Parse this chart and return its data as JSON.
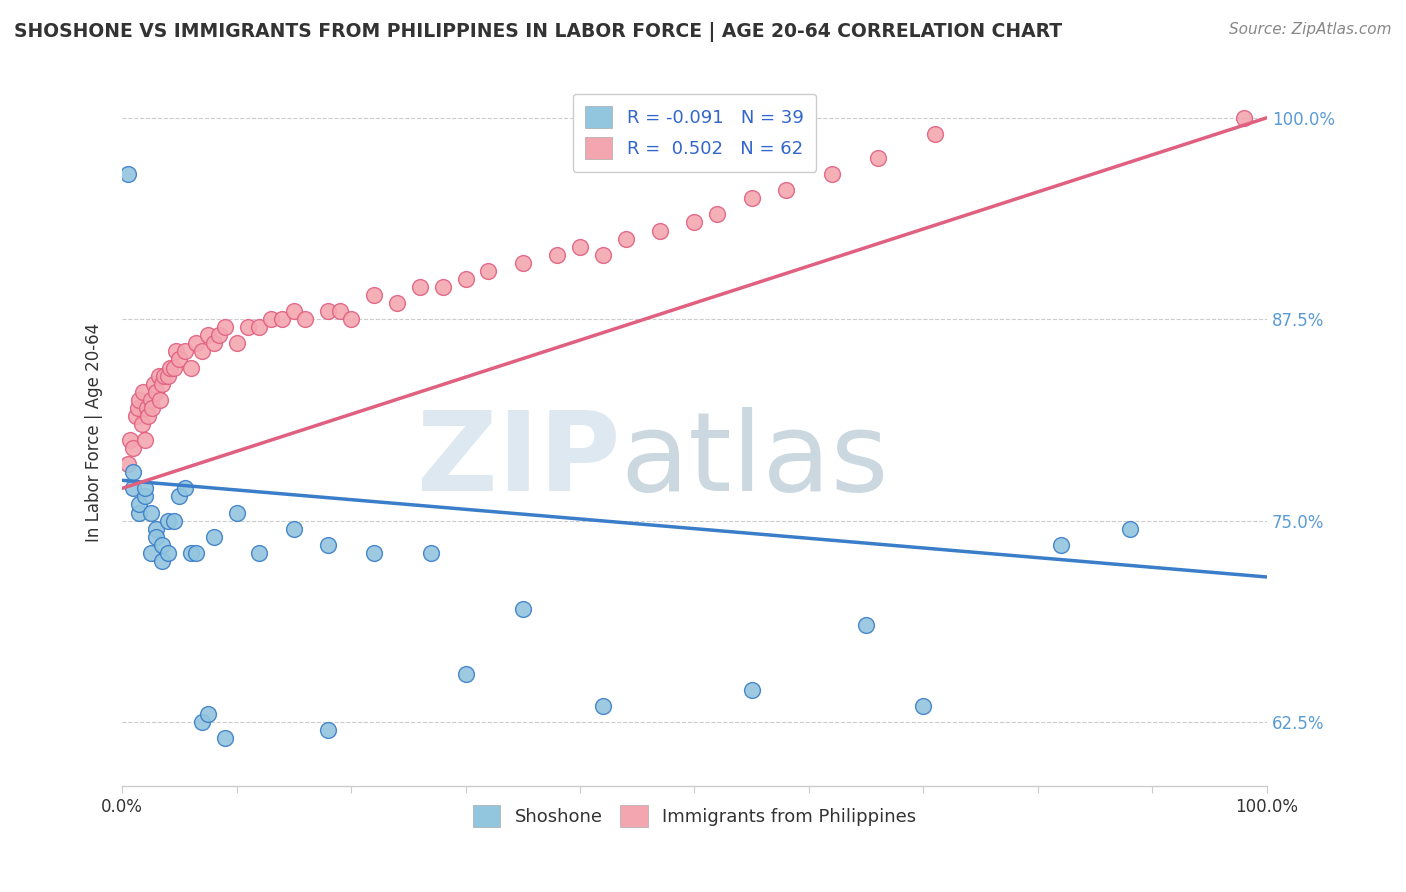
{
  "title": "SHOSHONE VS IMMIGRANTS FROM PHILIPPINES IN LABOR FORCE | AGE 20-64 CORRELATION CHART",
  "source": "Source: ZipAtlas.com",
  "ylabel": "In Labor Force | Age 20-64",
  "xlim": [
    0.0,
    1.0
  ],
  "ylim": [
    0.585,
    1.025
  ],
  "yticks": [
    0.625,
    0.75,
    0.875,
    1.0
  ],
  "ytick_labels": [
    "62.5%",
    "75.0%",
    "87.5%",
    "100.0%"
  ],
  "xtick_labels": [
    "0.0%",
    "",
    "",
    "",
    "",
    "",
    "",
    "",
    "",
    "",
    "100.0%"
  ],
  "xticks": [
    0.0,
    0.1,
    0.2,
    0.3,
    0.4,
    0.5,
    0.6,
    0.7,
    0.8,
    0.9,
    1.0
  ],
  "legend_labels": [
    "R = -0.091   N = 39",
    "R =  0.502   N = 62"
  ],
  "bottom_legend_labels": [
    "Shoshone",
    "Immigrants from Philippines"
  ],
  "shoshone_color": "#92c5de",
  "philippines_color": "#f4a6b0",
  "shoshone_line_color": "#3a7dc9",
  "philippines_line_color": "#e06080",
  "watermark_zip": "ZIP",
  "watermark_atlas": "atlas",
  "shoshone_x": [
    0.005,
    0.01,
    0.01,
    0.015,
    0.015,
    0.02,
    0.02,
    0.025,
    0.025,
    0.03,
    0.03,
    0.035,
    0.035,
    0.04,
    0.04,
    0.045,
    0.05,
    0.055,
    0.06,
    0.065,
    0.07,
    0.075,
    0.08,
    0.09,
    0.1,
    0.12,
    0.15,
    0.18,
    0.22,
    0.27,
    0.35,
    0.42,
    0.55,
    0.65,
    0.7,
    0.82,
    0.88,
    0.18,
    0.3
  ],
  "shoshone_y": [
    0.965,
    0.77,
    0.78,
    0.755,
    0.76,
    0.765,
    0.77,
    0.73,
    0.755,
    0.745,
    0.74,
    0.735,
    0.725,
    0.75,
    0.73,
    0.75,
    0.765,
    0.77,
    0.73,
    0.73,
    0.625,
    0.63,
    0.74,
    0.615,
    0.755,
    0.73,
    0.745,
    0.735,
    0.73,
    0.73,
    0.695,
    0.635,
    0.645,
    0.685,
    0.635,
    0.735,
    0.745,
    0.62,
    0.655
  ],
  "philippines_x": [
    0.005,
    0.007,
    0.01,
    0.012,
    0.014,
    0.015,
    0.017,
    0.018,
    0.02,
    0.022,
    0.023,
    0.025,
    0.026,
    0.028,
    0.03,
    0.032,
    0.033,
    0.035,
    0.037,
    0.04,
    0.042,
    0.045,
    0.047,
    0.05,
    0.055,
    0.06,
    0.065,
    0.07,
    0.075,
    0.08,
    0.085,
    0.09,
    0.1,
    0.11,
    0.12,
    0.13,
    0.14,
    0.15,
    0.16,
    0.18,
    0.19,
    0.2,
    0.22,
    0.24,
    0.26,
    0.28,
    0.3,
    0.32,
    0.35,
    0.38,
    0.4,
    0.42,
    0.44,
    0.47,
    0.5,
    0.52,
    0.55,
    0.58,
    0.62,
    0.66,
    0.71,
    0.98
  ],
  "philippines_y": [
    0.785,
    0.8,
    0.795,
    0.815,
    0.82,
    0.825,
    0.81,
    0.83,
    0.8,
    0.82,
    0.815,
    0.825,
    0.82,
    0.835,
    0.83,
    0.84,
    0.825,
    0.835,
    0.84,
    0.84,
    0.845,
    0.845,
    0.855,
    0.85,
    0.855,
    0.845,
    0.86,
    0.855,
    0.865,
    0.86,
    0.865,
    0.87,
    0.86,
    0.87,
    0.87,
    0.875,
    0.875,
    0.88,
    0.875,
    0.88,
    0.88,
    0.875,
    0.89,
    0.885,
    0.895,
    0.895,
    0.9,
    0.905,
    0.91,
    0.915,
    0.92,
    0.915,
    0.925,
    0.93,
    0.935,
    0.94,
    0.95,
    0.955,
    0.965,
    0.975,
    0.99,
    1.0
  ],
  "shoshone_trendline_x": [
    0.0,
    1.0
  ],
  "shoshone_trendline_y": [
    0.775,
    0.715
  ],
  "philippines_trendline_x": [
    0.0,
    1.0
  ],
  "philippines_trendline_y": [
    0.77,
    1.0
  ]
}
